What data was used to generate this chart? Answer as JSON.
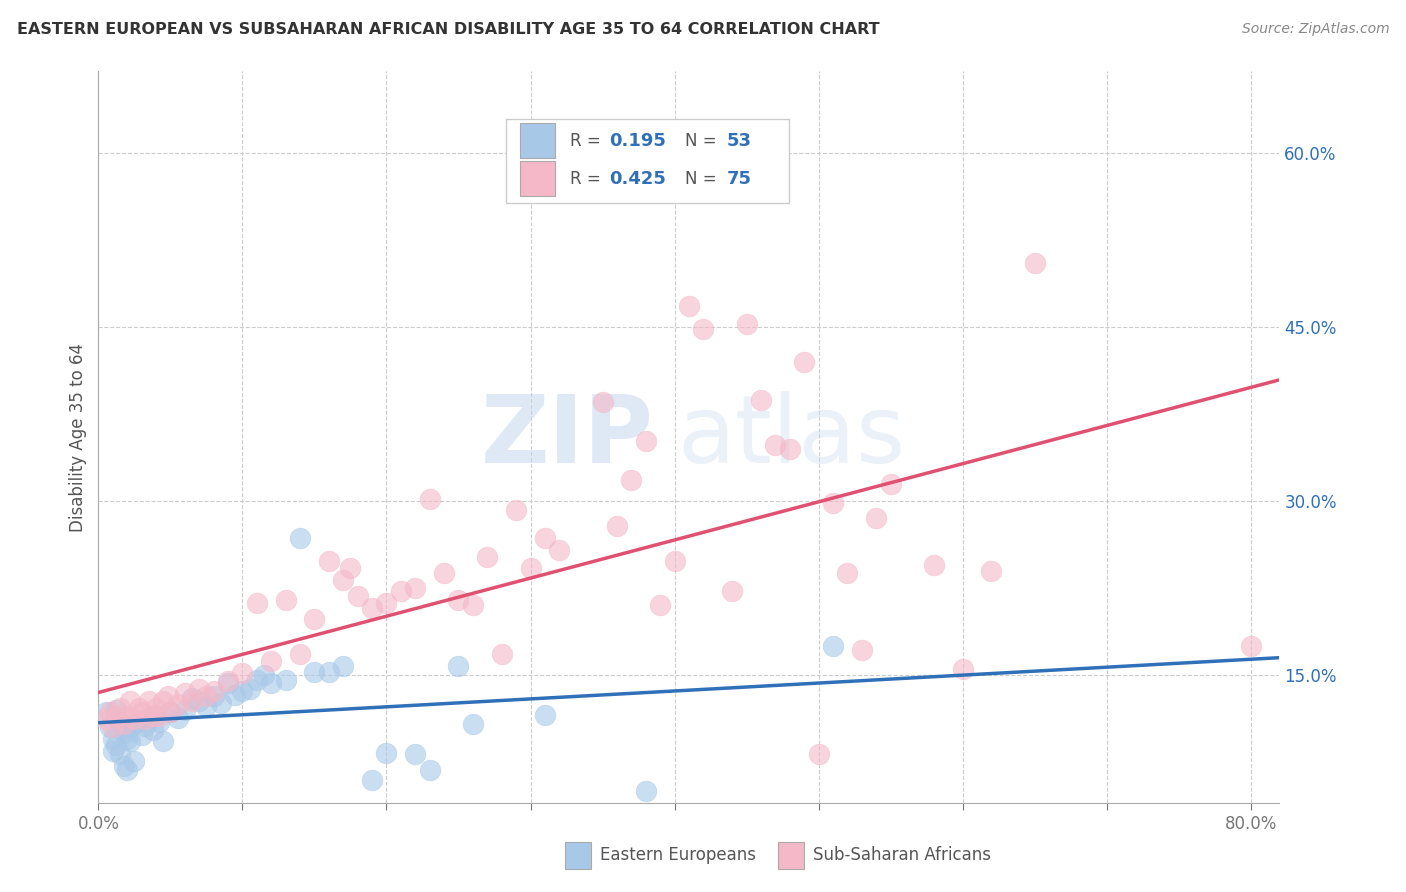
{
  "title": "EASTERN EUROPEAN VS SUBSAHARAN AFRICAN DISABILITY AGE 35 TO 64 CORRELATION CHART",
  "source": "Source: ZipAtlas.com",
  "ylabel": "Disability Age 35 to 64",
  "x_ticks": [
    0.0,
    0.1,
    0.2,
    0.3,
    0.4,
    0.5,
    0.6,
    0.7,
    0.8
  ],
  "y_ticks": [
    0.15,
    0.3,
    0.45,
    0.6
  ],
  "xlim": [
    0.0,
    0.82
  ],
  "ylim": [
    0.04,
    0.67
  ],
  "legend_r1": "0.195",
  "legend_n1": "53",
  "legend_r2": "0.425",
  "legend_n2": "75",
  "blue_color": "#a8c8e8",
  "pink_color": "#f4b8c8",
  "blue_line_color": "#3070b8",
  "pink_line_color": "#e05070",
  "blue_scatter": [
    [
      0.005,
      0.118
    ],
    [
      0.008,
      0.105
    ],
    [
      0.01,
      0.095
    ],
    [
      0.01,
      0.085
    ],
    [
      0.012,
      0.12
    ],
    [
      0.012,
      0.09
    ],
    [
      0.015,
      0.11
    ],
    [
      0.015,
      0.082
    ],
    [
      0.018,
      0.1
    ],
    [
      0.018,
      0.072
    ],
    [
      0.02,
      0.095
    ],
    [
      0.02,
      0.068
    ],
    [
      0.022,
      0.093
    ],
    [
      0.022,
      0.105
    ],
    [
      0.025,
      0.108
    ],
    [
      0.025,
      0.076
    ],
    [
      0.028,
      0.11
    ],
    [
      0.03,
      0.098
    ],
    [
      0.032,
      0.106
    ],
    [
      0.035,
      0.112
    ],
    [
      0.038,
      0.103
    ],
    [
      0.04,
      0.116
    ],
    [
      0.042,
      0.11
    ],
    [
      0.045,
      0.093
    ],
    [
      0.05,
      0.118
    ],
    [
      0.055,
      0.113
    ],
    [
      0.06,
      0.12
    ],
    [
      0.065,
      0.13
    ],
    [
      0.07,
      0.128
    ],
    [
      0.075,
      0.123
    ],
    [
      0.08,
      0.132
    ],
    [
      0.085,
      0.126
    ],
    [
      0.09,
      0.143
    ],
    [
      0.095,
      0.133
    ],
    [
      0.1,
      0.136
    ],
    [
      0.105,
      0.138
    ],
    [
      0.11,
      0.146
    ],
    [
      0.115,
      0.15
    ],
    [
      0.12,
      0.143
    ],
    [
      0.13,
      0.146
    ],
    [
      0.14,
      0.268
    ],
    [
      0.15,
      0.153
    ],
    [
      0.16,
      0.153
    ],
    [
      0.17,
      0.158
    ],
    [
      0.19,
      0.06
    ],
    [
      0.2,
      0.083
    ],
    [
      0.22,
      0.082
    ],
    [
      0.23,
      0.068
    ],
    [
      0.25,
      0.158
    ],
    [
      0.26,
      0.108
    ],
    [
      0.31,
      0.116
    ],
    [
      0.38,
      0.05
    ],
    [
      0.51,
      0.175
    ]
  ],
  "pink_scatter": [
    [
      0.005,
      0.112
    ],
    [
      0.008,
      0.118
    ],
    [
      0.01,
      0.105
    ],
    [
      0.012,
      0.115
    ],
    [
      0.015,
      0.122
    ],
    [
      0.018,
      0.108
    ],
    [
      0.02,
      0.115
    ],
    [
      0.022,
      0.128
    ],
    [
      0.025,
      0.112
    ],
    [
      0.028,
      0.122
    ],
    [
      0.03,
      0.118
    ],
    [
      0.032,
      0.112
    ],
    [
      0.035,
      0.128
    ],
    [
      0.038,
      0.115
    ],
    [
      0.04,
      0.122
    ],
    [
      0.042,
      0.115
    ],
    [
      0.045,
      0.128
    ],
    [
      0.048,
      0.132
    ],
    [
      0.05,
      0.118
    ],
    [
      0.055,
      0.125
    ],
    [
      0.06,
      0.135
    ],
    [
      0.065,
      0.128
    ],
    [
      0.07,
      0.138
    ],
    [
      0.075,
      0.132
    ],
    [
      0.08,
      0.136
    ],
    [
      0.09,
      0.145
    ],
    [
      0.1,
      0.152
    ],
    [
      0.11,
      0.212
    ],
    [
      0.12,
      0.162
    ],
    [
      0.13,
      0.215
    ],
    [
      0.14,
      0.168
    ],
    [
      0.15,
      0.198
    ],
    [
      0.16,
      0.248
    ],
    [
      0.17,
      0.232
    ],
    [
      0.175,
      0.242
    ],
    [
      0.18,
      0.218
    ],
    [
      0.19,
      0.208
    ],
    [
      0.2,
      0.212
    ],
    [
      0.21,
      0.222
    ],
    [
      0.22,
      0.225
    ],
    [
      0.23,
      0.302
    ],
    [
      0.24,
      0.238
    ],
    [
      0.25,
      0.215
    ],
    [
      0.26,
      0.21
    ],
    [
      0.27,
      0.252
    ],
    [
      0.28,
      0.168
    ],
    [
      0.29,
      0.292
    ],
    [
      0.3,
      0.242
    ],
    [
      0.31,
      0.268
    ],
    [
      0.32,
      0.258
    ],
    [
      0.35,
      0.385
    ],
    [
      0.36,
      0.278
    ],
    [
      0.37,
      0.318
    ],
    [
      0.38,
      0.352
    ],
    [
      0.39,
      0.21
    ],
    [
      0.4,
      0.248
    ],
    [
      0.41,
      0.468
    ],
    [
      0.42,
      0.448
    ],
    [
      0.44,
      0.222
    ],
    [
      0.45,
      0.452
    ],
    [
      0.46,
      0.387
    ],
    [
      0.47,
      0.348
    ],
    [
      0.48,
      0.345
    ],
    [
      0.49,
      0.42
    ],
    [
      0.5,
      0.082
    ],
    [
      0.51,
      0.298
    ],
    [
      0.52,
      0.238
    ],
    [
      0.53,
      0.172
    ],
    [
      0.54,
      0.285
    ],
    [
      0.55,
      0.315
    ],
    [
      0.58,
      0.245
    ],
    [
      0.6,
      0.155
    ],
    [
      0.62,
      0.24
    ],
    [
      0.65,
      0.505
    ],
    [
      0.8,
      0.175
    ]
  ],
  "watermark_zip": "ZIP",
  "watermark_atlas": "atlas",
  "background_color": "#ffffff",
  "grid_color": "#cccccc",
  "legend_text_color": "#3070b8",
  "legend_label_color": "#555555"
}
